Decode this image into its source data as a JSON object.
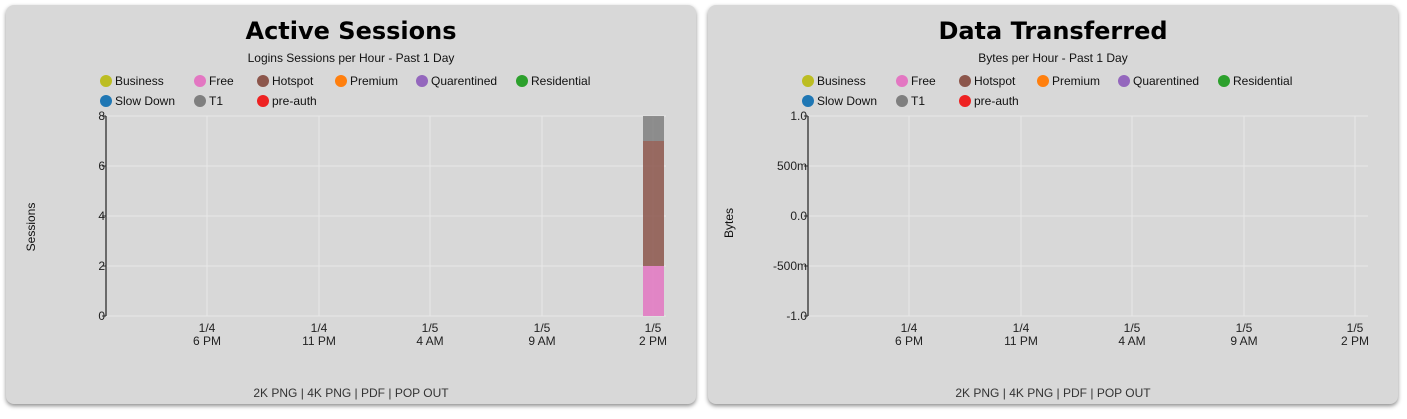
{
  "colors": {
    "Business": "#bcbd22",
    "Free": "#e377c2",
    "Hotspot": "#8c564b",
    "Premium": "#ff7f0e",
    "Quarentined": "#9467bd",
    "Residential": "#2ca02c",
    "Slow Down": "#1f77b4",
    "T1": "#7f7f7f",
    "pre-auth": "#ee2222"
  },
  "footer": {
    "png2k": "2K PNG",
    "png4k": "4K PNG",
    "pdf": "PDF",
    "popout": "POP OUT",
    "sep": "|"
  },
  "chart_data": [
    {
      "type": "bar",
      "stacked": true,
      "title": "Active Sessions",
      "subtitle": "Logins Sessions per Hour - Past 1 Day",
      "ylabel": "Sessions",
      "xlabel": "",
      "ylim": [
        0,
        8
      ],
      "yticks": [
        "0",
        "2",
        "4",
        "6",
        "8"
      ],
      "xticks": [
        {
          "date": "1/4",
          "time": "6 PM"
        },
        {
          "date": "1/4",
          "time": "11 PM"
        },
        {
          "date": "1/5",
          "time": "4 AM"
        },
        {
          "date": "1/5",
          "time": "9 AM"
        },
        {
          "date": "1/5",
          "time": "2 PM"
        }
      ],
      "grid": true,
      "legend": [
        "Business",
        "Free",
        "Hotspot",
        "Premium",
        "Quarentined",
        "Residential",
        "Slow Down",
        "T1",
        "pre-auth"
      ],
      "bars": [
        {
          "x": "1/5 2 PM",
          "segments": [
            {
              "series": "Free",
              "value": 2
            },
            {
              "series": "Hotspot",
              "value": 5
            },
            {
              "series": "T1",
              "value": 1
            }
          ]
        }
      ]
    },
    {
      "type": "bar",
      "stacked": true,
      "title": "Data Transferred",
      "subtitle": "Bytes per Hour - Past 1 Day",
      "ylabel": "Bytes",
      "xlabel": "",
      "ylim": [
        -1,
        1
      ],
      "yticks": [
        "-1.0",
        "-500m",
        "0.0",
        "500m",
        "1.0"
      ],
      "xticks": [
        {
          "date": "1/4",
          "time": "6 PM"
        },
        {
          "date": "1/4",
          "time": "11 PM"
        },
        {
          "date": "1/5",
          "time": "4 AM"
        },
        {
          "date": "1/5",
          "time": "9 AM"
        },
        {
          "date": "1/5",
          "time": "2 PM"
        }
      ],
      "grid": true,
      "legend": [
        "Business",
        "Free",
        "Hotspot",
        "Premium",
        "Quarentined",
        "Residential",
        "Slow Down",
        "T1",
        "pre-auth"
      ],
      "bars": []
    }
  ]
}
